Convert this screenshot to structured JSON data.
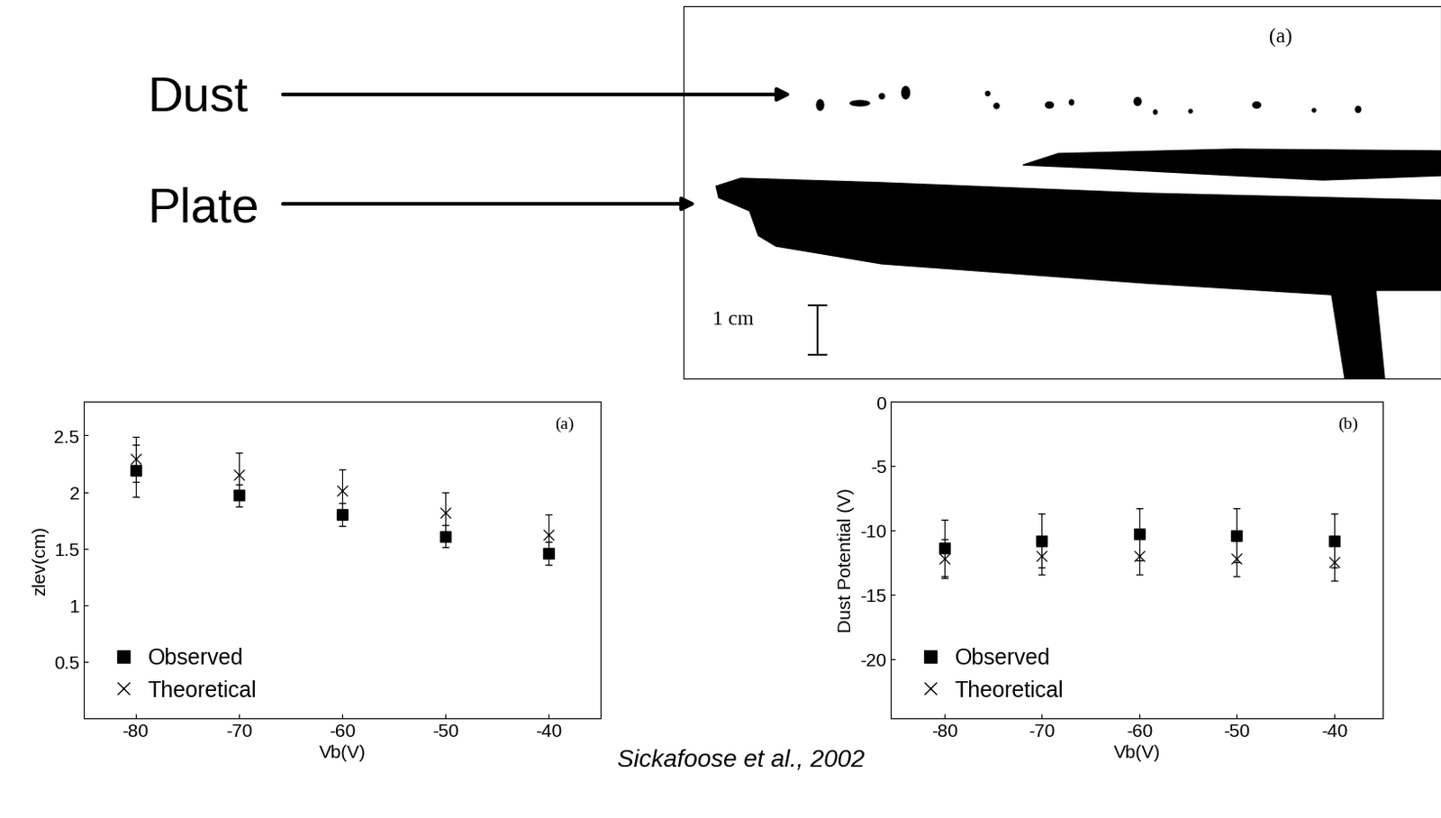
{
  "labels": {
    "dust": "Dust",
    "plate": "Plate"
  },
  "image": {
    "annotation": "(a)",
    "scale_bar": "1 cm"
  },
  "caption": "Sickafoose et al., 2002",
  "chart_data": [
    {
      "type": "scatter",
      "annotation": "(a)",
      "x_label": "Vb(V)",
      "y_label": "zlev(cm)",
      "x": [
        -80,
        -70,
        -60,
        -50,
        -40
      ],
      "series": [
        {
          "name": "Observed",
          "color": "#000000",
          "marker": "square",
          "values": [
            2.19,
            1.97,
            1.8,
            1.61,
            1.46
          ],
          "error": [
            0.23,
            0.1,
            0.1,
            0.1,
            0.1
          ]
        },
        {
          "name": "Theoretical",
          "color": "#000000",
          "marker": "x",
          "values": [
            2.29,
            2.15,
            2.01,
            1.82,
            1.62
          ],
          "error": [
            0.2,
            0.2,
            0.19,
            0.18,
            0.18
          ]
        }
      ],
      "xlim": [
        -85,
        -35
      ],
      "xticks": [
        -80,
        -70,
        -60,
        -50,
        -40
      ],
      "ylim": [
        0,
        2.8
      ],
      "yticks": [
        0.5,
        1,
        1.5,
        2,
        2.5
      ],
      "legend": "lower left"
    },
    {
      "type": "scatter",
      "annotation": "(b)",
      "x_label": "Vb(V)",
      "y_label": "Dust Potential (V)",
      "x": [
        -80,
        -70,
        -60,
        -50,
        -40
      ],
      "series": [
        {
          "name": "Observed",
          "color": "#000000",
          "marker": "square",
          "values": [
            -11.4,
            -10.8,
            -10.3,
            -10.4,
            -10.8
          ],
          "error": [
            2.2,
            2.1,
            2.0,
            2.1,
            2.1
          ]
        },
        {
          "name": "Theoretical",
          "color": "#000000",
          "marker": "x",
          "values": [
            -12.2,
            -12.0,
            -12.0,
            -12.2,
            -12.5
          ],
          "error": [
            1.5,
            1.4,
            1.4,
            1.4,
            1.4
          ]
        }
      ],
      "xlim": [
        -85.5,
        -35
      ],
      "xticks": [
        -80,
        -70,
        -60,
        -50,
        -40
      ],
      "ylim": [
        -24.6,
        0
      ],
      "yticks": [
        0,
        -5,
        -10,
        -15,
        -20
      ],
      "legend": "lower left"
    }
  ]
}
